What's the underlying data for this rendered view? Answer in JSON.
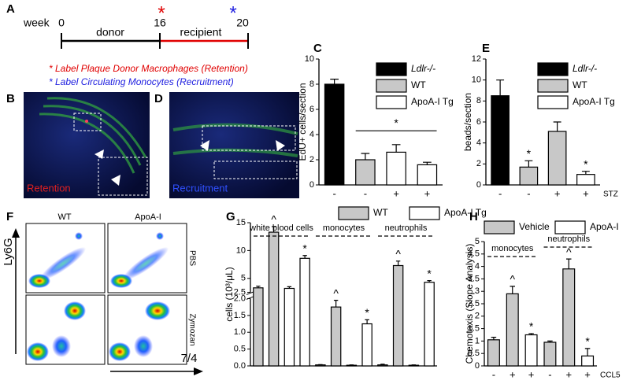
{
  "figure": {
    "panel_labels": [
      "A",
      "B",
      "C",
      "D",
      "E",
      "F",
      "G",
      "H"
    ],
    "timeline": {
      "unit": "week",
      "ticks": [
        "0",
        "16",
        "20"
      ],
      "phases": [
        "donor",
        "recipient"
      ],
      "markers": [
        "*",
        "*"
      ],
      "legend": [
        "* Label Plaque Donor Macrophages (Retention)",
        "* Label Circulating Monocytes (Recruitment)"
      ]
    },
    "images": [
      "Retention",
      "Recruitment"
    ],
    "flow": {
      "columns": [
        "WT",
        "ApoA-I"
      ],
      "rows": [
        "PBS",
        "Zymozan"
      ],
      "y_label": "Ly6G",
      "x_label": "7/4"
    }
  },
  "chart_data": [
    {
      "type": "bar",
      "y_label": "EdU+ cells/section",
      "categories": [
        "-",
        "-",
        "+",
        "+"
      ],
      "ylim": [
        0,
        10
      ],
      "yticks": [
        0,
        2,
        4,
        6,
        8,
        10
      ],
      "significance": "*",
      "series": [
        {
          "name": "Ldlr-/-",
          "color": "#000000",
          "values": [
            8,
            null,
            null,
            null
          ],
          "errors": [
            0.4,
            null,
            null,
            null
          ]
        },
        {
          "name": "WT",
          "color": "#c8c8c8",
          "values": [
            null,
            2,
            null,
            null
          ],
          "errors": [
            null,
            0.5,
            null,
            null
          ]
        },
        {
          "name": "ApoA-I Tg",
          "color": "#ffffff",
          "values": [
            null,
            null,
            2.6,
            1.6
          ],
          "errors": [
            null,
            null,
            0.6,
            0.2
          ]
        }
      ]
    },
    {
      "type": "bar",
      "y_label": "beads/section",
      "categories": [
        "-",
        "-",
        "+",
        "+"
      ],
      "x_axis_label": "STZ",
      "ylim": [
        0,
        12
      ],
      "yticks": [
        0,
        2,
        4,
        6,
        8,
        10,
        12
      ],
      "series": [
        {
          "name": "Ldlr-/-",
          "color": "#000000",
          "values": [
            8.5,
            null,
            null,
            null
          ],
          "errors": [
            1.5,
            null,
            null,
            null
          ],
          "annotations": [
            null,
            null,
            null,
            null
          ]
        },
        {
          "name": "WT",
          "color": "#c8c8c8",
          "values": [
            null,
            1.7,
            5.1,
            null
          ],
          "errors": [
            null,
            0.6,
            0.9,
            null
          ],
          "annotations": [
            null,
            "*",
            null,
            null
          ]
        },
        {
          "name": "ApoA-I Tg",
          "color": "#ffffff",
          "values": [
            null,
            null,
            null,
            1.0
          ],
          "errors": [
            null,
            null,
            null,
            0.3
          ],
          "annotations": [
            null,
            null,
            null,
            "*"
          ]
        }
      ]
    },
    {
      "type": "bar",
      "y_label": "cells (10³/μL)",
      "categories": [
        null,
        null,
        null,
        null,
        null,
        null,
        null,
        null,
        null,
        null,
        null,
        null
      ],
      "groups": [
        "white blood cells",
        "monocytes",
        "neutrophils"
      ],
      "ylim": [
        0,
        15
      ],
      "axis_break": [
        2,
        2.5
      ],
      "yticks": [
        {
          "value": 0,
          "label": "0.0"
        },
        0.5,
        {
          "value": 1,
          "label": "1.0"
        },
        1.5,
        {
          "value": 2,
          "label": "2.0"
        },
        2.5,
        5,
        10,
        15
      ],
      "series": [
        {
          "name": "WT",
          "color": "#c8c8c8",
          "values": [
            3.3,
            13.3,
            null,
            null,
            0.03,
            1.75,
            null,
            null,
            0.03,
            7.3,
            null,
            null
          ],
          "errors": [
            0.3,
            1.0,
            null,
            null,
            0.01,
            0.2,
            null,
            null,
            0.02,
            0.8,
            null,
            null
          ],
          "annotations": [
            null,
            "^",
            null,
            null,
            null,
            "^",
            null,
            null,
            null,
            "^",
            null,
            null
          ]
        },
        {
          "name": "ApoA-I Tg",
          "color": "#ffffff",
          "values": [
            null,
            null,
            3.2,
            8.6,
            null,
            null,
            0.02,
            1.25,
            null,
            null,
            0.02,
            4.3
          ],
          "errors": [
            null,
            null,
            0.3,
            0.5,
            null,
            null,
            0.01,
            0.12,
            null,
            null,
            0.01,
            0.3
          ],
          "annotations": [
            null,
            null,
            null,
            "*",
            null,
            null,
            null,
            "*",
            null,
            null,
            null,
            "*"
          ]
        }
      ]
    },
    {
      "type": "bar",
      "y_label": "Chemotaxis (Slope Analysis)",
      "categories": [
        "-",
        "+",
        "+",
        "-",
        "+",
        "+"
      ],
      "x_axis_label": "CCL5",
      "groups": [
        "monocytes",
        "neutrophils"
      ],
      "ylim": [
        0,
        5
      ],
      "yticks": [
        0,
        0.5,
        1,
        1.5,
        2,
        2.5,
        3,
        3.5,
        4,
        4.5,
        5
      ],
      "series": [
        {
          "name": "Vehicle",
          "color": "#c8c8c8",
          "values": [
            1.05,
            2.9,
            null,
            0.95,
            3.9,
            null
          ],
          "errors": [
            0.1,
            0.3,
            null,
            0.05,
            0.4,
            null
          ],
          "annotations": [
            null,
            "^",
            null,
            null,
            "^",
            null
          ]
        },
        {
          "name": "ApoA-I",
          "color": "#ffffff",
          "values": [
            null,
            null,
            1.25,
            null,
            null,
            0.4
          ],
          "errors": [
            null,
            null,
            0.05,
            null,
            null,
            0.3
          ],
          "annotations": [
            null,
            null,
            "*",
            null,
            null,
            "*"
          ]
        }
      ]
    }
  ]
}
